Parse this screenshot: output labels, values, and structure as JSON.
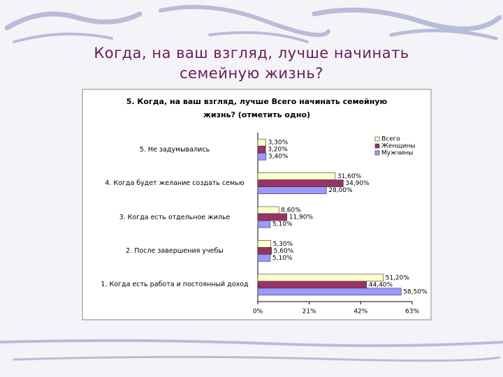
{
  "title": "Когда, на ваш взгляд, лучше начинать семейную жизнь?",
  "chart_data": {
    "type": "bar",
    "orientation": "horizontal",
    "title": "5. Когда, на ваш взгляд, лучше Всего начинать семейную жизнь? (отметить одно)",
    "categories": [
      "5. Не задумывались",
      "4. Когда будет желание создать семью",
      "3. Когда есть отдельное жилье",
      "2. После завершения учебы",
      "1. Когда есть работа и постоянный доход"
    ],
    "series": [
      {
        "name": "Всего",
        "color": "#ffffcc",
        "values": [
          3.3,
          31.6,
          8.6,
          5.3,
          51.2
        ],
        "value_labels": [
          "3,30%",
          "31,60%",
          "8,60%",
          "5,30%",
          "51,20%"
        ]
      },
      {
        "name": "Женщины",
        "color": "#993366",
        "values": [
          3.2,
          34.9,
          11.9,
          5.6,
          44.4
        ],
        "value_labels": [
          "3,20%",
          "34,90%",
          "11,90%",
          "5,60%",
          "44,40%"
        ]
      },
      {
        "name": "Мужчины",
        "color": "#9999ff",
        "values": [
          3.4,
          28.0,
          5.1,
          5.1,
          58.5
        ],
        "value_labels": [
          "3,40%",
          "28,00%",
          "5,10%",
          "5,10%",
          "58,50%"
        ]
      }
    ],
    "xlim": [
      0,
      63
    ],
    "xticks": [
      {
        "value": 0,
        "label": "0%"
      },
      {
        "value": 21,
        "label": "21%"
      },
      {
        "value": 42,
        "label": "42%"
      },
      {
        "value": 63,
        "label": "63%"
      }
    ],
    "legend": "upper right"
  }
}
